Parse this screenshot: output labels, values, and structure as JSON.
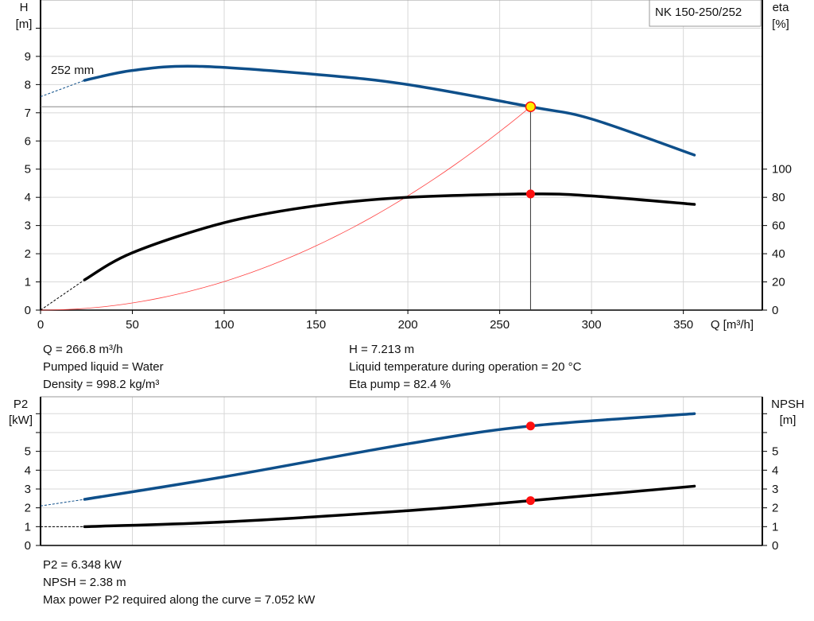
{
  "title": "NK 150-250/252",
  "colors": {
    "pump_curve": "#0e4f8a",
    "eta_curve": "#000000",
    "system_curve": "#ff4040",
    "duty_point": "#ff1010",
    "duty_point_h": "#ffee00"
  },
  "chart_data": [
    {
      "type": "line",
      "title": "NK 150-250/252",
      "xlabel": "Q [m³/h]",
      "ylabel": "H [m]",
      "y2label": "eta [%]",
      "xlim": [
        0,
        393
      ],
      "ylim": [
        0,
        11
      ],
      "y2lim": [
        0,
        220
      ],
      "grid": true,
      "x_ticks": [
        "0",
        "50",
        "100",
        "150",
        "200",
        "250",
        "300",
        "350"
      ],
      "y_ticks": [
        "0",
        "1",
        "2",
        "3",
        "4",
        "5",
        "6",
        "7",
        "8",
        "9"
      ],
      "y2_ticks": [
        "0",
        "20",
        "40",
        "60",
        "80",
        "100"
      ],
      "annotation": "252 mm",
      "series": [
        {
          "name": "H",
          "axis": "left",
          "x": [
            24,
            50,
            85,
            150,
            200,
            266.8,
            300,
            356
          ],
          "y": [
            8.15,
            8.5,
            8.65,
            8.36,
            8.0,
            7.213,
            6.78,
            5.5
          ],
          "extrapolated": {
            "x": [
              0,
              24
            ],
            "y": [
              7.57,
              8.15
            ]
          }
        },
        {
          "name": "eta",
          "axis": "right",
          "x": [
            24,
            50,
            100,
            150,
            200,
            266.8,
            300,
            356
          ],
          "y": [
            21.5,
            40.7,
            62,
            74,
            80,
            82.4,
            81,
            75
          ],
          "extrapolated": {
            "x": [
              0,
              24
            ],
            "y": [
              0,
              21.5
            ]
          }
        },
        {
          "name": "system",
          "axis": "left",
          "x": [
            0,
            266.8
          ],
          "y": [
            0,
            7.213
          ],
          "shape": "quadratic"
        }
      ],
      "duty_point": {
        "q": 266.8,
        "h": 7.213,
        "eta": 82.4
      }
    },
    {
      "type": "line",
      "ylabel": "P2 [kW]",
      "y2label": "NPSH [m]",
      "xlim": [
        0,
        393
      ],
      "ylim": [
        0,
        7.9
      ],
      "grid": true,
      "y_ticks": [
        "0",
        "1",
        "2",
        "3",
        "4",
        "5"
      ],
      "y2_ticks": [
        "0",
        "1",
        "2",
        "3",
        "4",
        "5"
      ],
      "series": [
        {
          "name": "P2",
          "x": [
            24,
            100,
            200,
            266.8,
            356
          ],
          "y": [
            2.45,
            3.65,
            5.4,
            6.348,
            7.0
          ],
          "extrapolated": {
            "x": [
              0,
              24
            ],
            "y": [
              2.1,
              2.45
            ]
          }
        },
        {
          "name": "NPSH",
          "x": [
            24,
            100,
            200,
            266.8,
            356
          ],
          "y": [
            1.0,
            1.25,
            1.85,
            2.38,
            3.15
          ],
          "extrapolated": {
            "x": [
              0,
              24
            ],
            "y": [
              1.0,
              1.0
            ]
          }
        }
      ],
      "duty_point": {
        "q": 266.8,
        "p2": 6.348,
        "npsh": 2.38
      }
    }
  ],
  "info_top": {
    "q": "Q = 266.8 m³/h",
    "liquid": "Pumped liquid = Water",
    "density": "Density = 998.2 kg/m³",
    "h": "H = 7.213 m",
    "temp": "Liquid temperature during operation = 20 °C",
    "eta": "Eta pump = 82.4 %"
  },
  "info_bottom": {
    "p2": "P2 = 6.348 kW",
    "npsh": "NPSH = 2.38 m",
    "max_p2": "Max power P2 required along the curve = 7.052 kW"
  }
}
